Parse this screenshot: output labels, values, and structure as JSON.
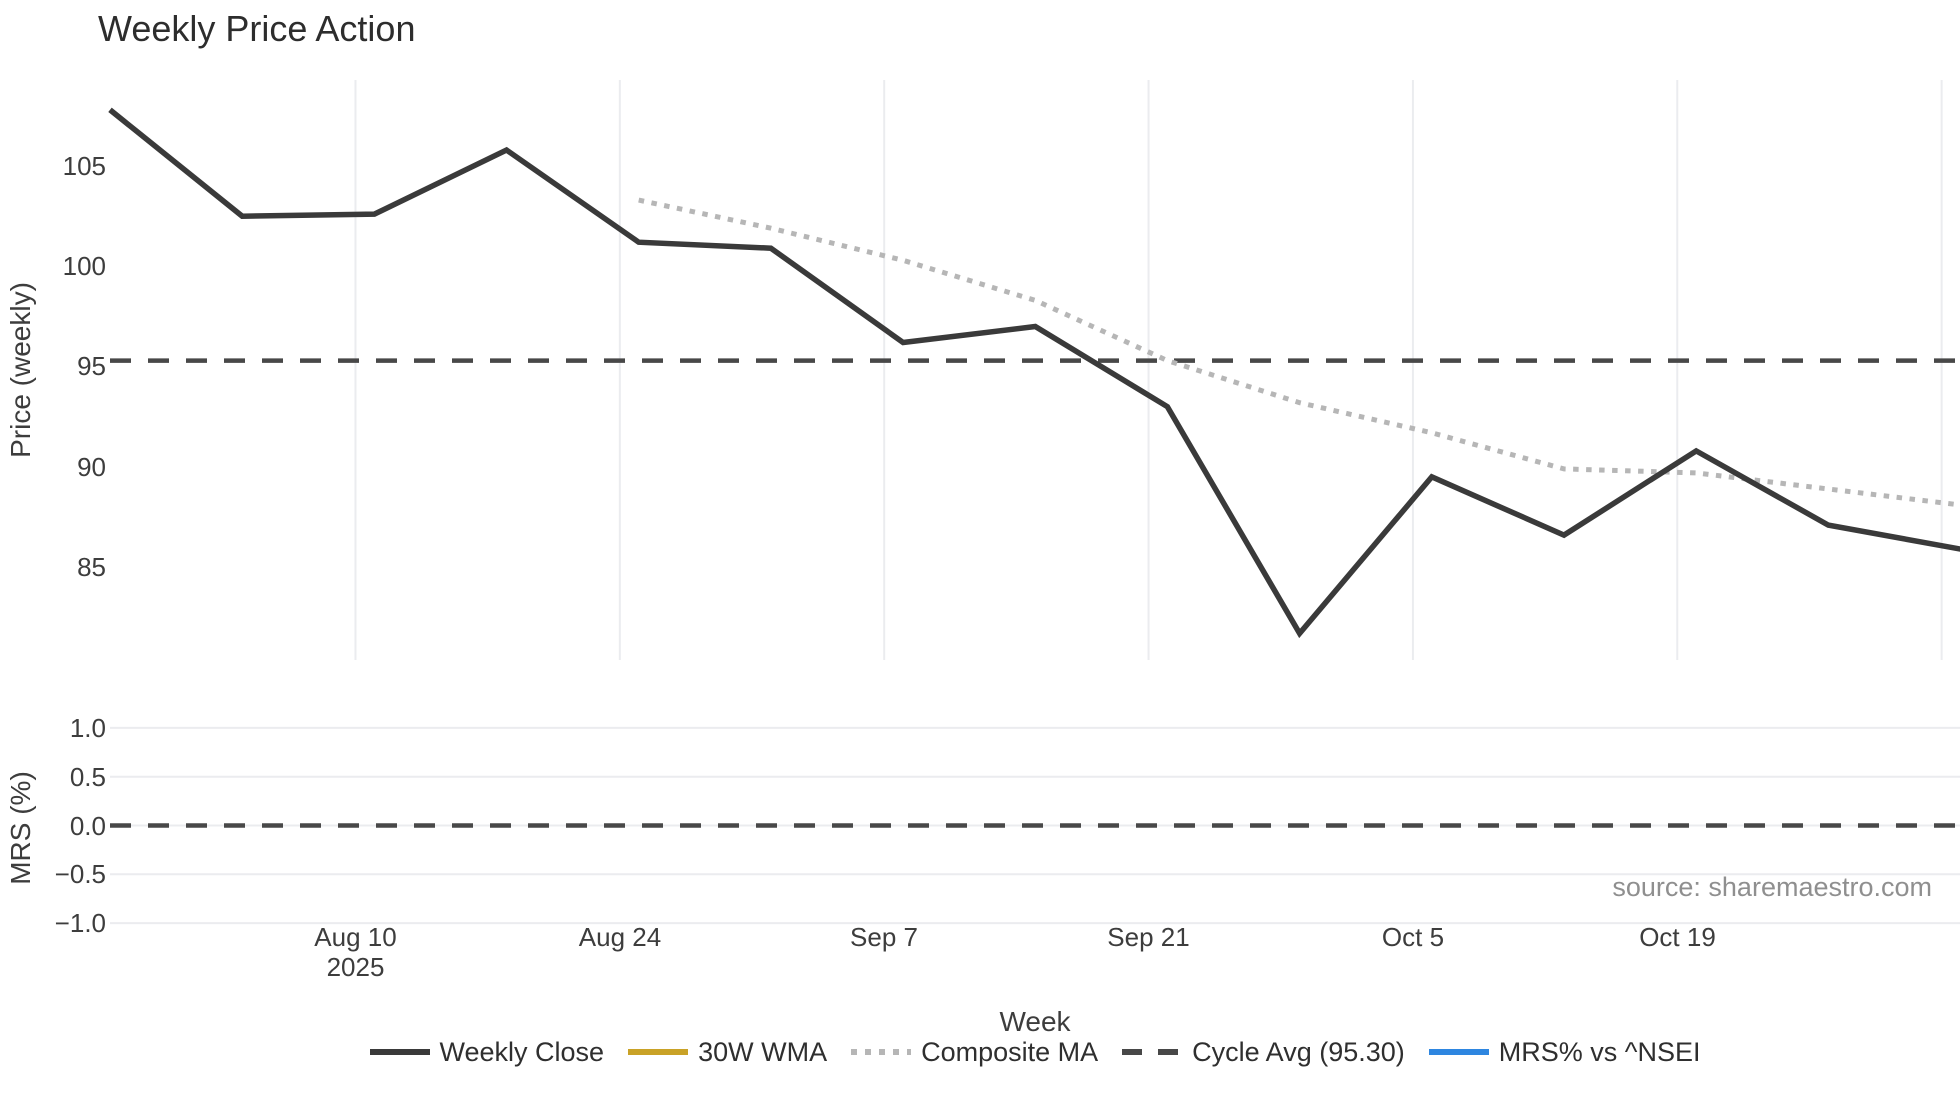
{
  "title": "Weekly Price Action",
  "source_note": "source: sharemaestro.com",
  "price_axis": {
    "title": "Price (weekly)",
    "ticks": [
      "105",
      "100",
      "95",
      "90",
      "85"
    ]
  },
  "mrs_axis": {
    "title": "MRS (%)",
    "ticks": [
      "1.0",
      "0.5",
      "0.0",
      "−0.5",
      "−1.0"
    ]
  },
  "x_axis": {
    "title": "Week",
    "ticks": [
      {
        "label": "Aug 10",
        "sublabel": "2025"
      },
      {
        "label": "Aug 24"
      },
      {
        "label": "Sep 7"
      },
      {
        "label": "Sep 21"
      },
      {
        "label": "Oct 5"
      },
      {
        "label": "Oct 19"
      },
      {
        "label": ""
      }
    ]
  },
  "legend": {
    "items": [
      {
        "label": "Weekly Close",
        "color": "#3a3a3a",
        "style": "solid"
      },
      {
        "label": "30W WMA",
        "color": "#C9A227",
        "style": "solid"
      },
      {
        "label": "Composite MA",
        "color": "#b6b6b6",
        "style": "dotted"
      },
      {
        "label": "Cycle Avg (95.30)",
        "color": "#484848",
        "style": "dashed"
      },
      {
        "label": "MRS% vs ^NSEI",
        "color": "#2E86E0",
        "style": "solid"
      }
    ]
  },
  "chart_data": [
    {
      "type": "line",
      "panel": "price",
      "title": "Weekly Price Action",
      "xlabel": "Week",
      "ylabel": "Price (weekly)",
      "x": [
        0,
        1,
        2,
        3,
        4,
        5,
        6,
        7,
        8,
        9,
        10,
        11,
        12,
        13,
        14
      ],
      "x_tick_labels": [
        "Aug 10 2025",
        "Aug 24",
        "Sep 7",
        "Sep 21",
        "Oct 5",
        "Oct 19"
      ],
      "yticks": [
        85,
        90,
        95,
        100,
        105
      ],
      "ylim": [
        80.3,
        109.3
      ],
      "grid": "vertical-only",
      "legend_position": "bottom-center",
      "series": [
        {
          "name": "Weekly Close",
          "type": "line",
          "style": "solid",
          "color": "#3a3a3a",
          "values": [
            107.8,
            102.5,
            102.6,
            105.8,
            101.2,
            100.9,
            96.2,
            97.0,
            93.0,
            81.7,
            89.5,
            86.6,
            90.8,
            87.1,
            85.9
          ]
        },
        {
          "name": "30W WMA",
          "type": "line",
          "style": "solid",
          "color": "#C9A227",
          "values": []
        },
        {
          "name": "Composite MA",
          "type": "line",
          "style": "dotted",
          "color": "#b6b6b6",
          "values": [
            null,
            null,
            null,
            null,
            103.3,
            101.9,
            100.3,
            98.3,
            95.3,
            93.2,
            91.7,
            89.9,
            89.7,
            88.9,
            88.1
          ]
        },
        {
          "name": "Cycle Avg",
          "type": "hline",
          "style": "dashed",
          "color": "#484848",
          "value": 95.3
        }
      ]
    },
    {
      "type": "line",
      "panel": "mrs",
      "ylabel": "MRS (%)",
      "yticks": [
        -1.0,
        -0.5,
        0.0,
        0.5,
        1.0
      ],
      "ylim": [
        -1.25,
        1.28
      ],
      "grid": "horizontal-only",
      "series": [
        {
          "name": "MRS% vs ^NSEI",
          "type": "line",
          "style": "solid",
          "color": "#2E86E0",
          "values": []
        },
        {
          "name": "Zero line",
          "type": "hline",
          "style": "dashed",
          "color": "#484848",
          "value": 0.0
        }
      ]
    }
  ]
}
